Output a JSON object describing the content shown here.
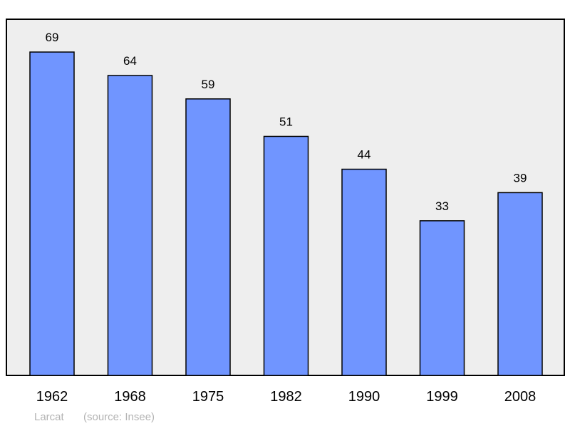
{
  "chart_data": {
    "type": "bar",
    "categories": [
      "1962",
      "1968",
      "1975",
      "1982",
      "1990",
      "1999",
      "2008"
    ],
    "values": [
      69,
      64,
      59,
      51,
      44,
      33,
      39
    ],
    "ylim": [
      0,
      76
    ],
    "grid": false,
    "bar_color": "#7095ff",
    "plot_background": "#eeeeee",
    "caption_place": "Larcat",
    "caption_source": "(source: Insee)",
    "caption_color": "#b3b3b3"
  }
}
